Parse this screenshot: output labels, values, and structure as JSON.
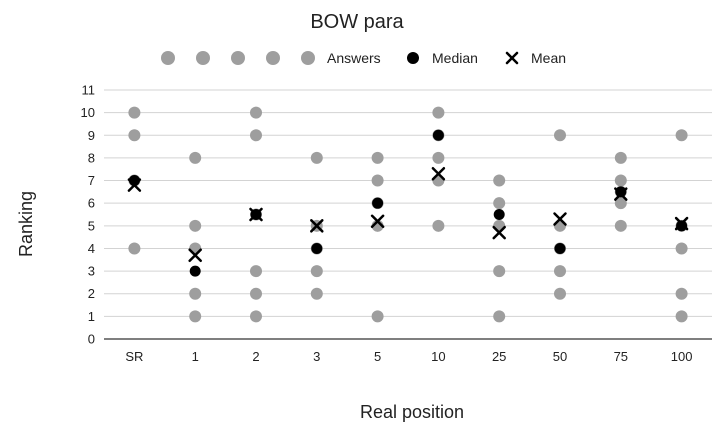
{
  "chart_data": {
    "type": "scatter",
    "title": "BOW para",
    "xlabel": "Real position",
    "ylabel": "Ranking",
    "categories": [
      "SR",
      "1",
      "2",
      "3",
      "5",
      "10",
      "25",
      "50",
      "75",
      "100"
    ],
    "yticks": [
      "0",
      "1",
      "2",
      "3",
      "4",
      "5",
      "6",
      "7",
      "8",
      "9",
      "10",
      "11"
    ],
    "ylim": [
      0,
      11
    ],
    "grid": true,
    "legend_position": "top",
    "legend": [
      "Answers",
      "Median",
      "Mean"
    ],
    "series": [
      {
        "name": "Answers",
        "marker": "circle",
        "color": "#9e9e9e",
        "points": [
          {
            "x": "SR",
            "y": 10
          },
          {
            "x": "SR",
            "y": 9
          },
          {
            "x": "SR",
            "y": 7
          },
          {
            "x": "SR",
            "y": 4
          },
          {
            "x": "1",
            "y": 8
          },
          {
            "x": "1",
            "y": 5
          },
          {
            "x": "1",
            "y": 4
          },
          {
            "x": "1",
            "y": 2
          },
          {
            "x": "1",
            "y": 1
          },
          {
            "x": "2",
            "y": 10
          },
          {
            "x": "2",
            "y": 9
          },
          {
            "x": "2",
            "y": 5.5
          },
          {
            "x": "2",
            "y": 3
          },
          {
            "x": "2",
            "y": 2
          },
          {
            "x": "2",
            "y": 1
          },
          {
            "x": "3",
            "y": 8
          },
          {
            "x": "3",
            "y": 5
          },
          {
            "x": "3",
            "y": 4
          },
          {
            "x": "3",
            "y": 3
          },
          {
            "x": "3",
            "y": 2
          },
          {
            "x": "5",
            "y": 8
          },
          {
            "x": "5",
            "y": 7
          },
          {
            "x": "5",
            "y": 6
          },
          {
            "x": "5",
            "y": 5
          },
          {
            "x": "5",
            "y": 1
          },
          {
            "x": "10",
            "y": 10
          },
          {
            "x": "10",
            "y": 9
          },
          {
            "x": "10",
            "y": 8
          },
          {
            "x": "10",
            "y": 7
          },
          {
            "x": "10",
            "y": 5
          },
          {
            "x": "25",
            "y": 7
          },
          {
            "x": "25",
            "y": 6
          },
          {
            "x": "25",
            "y": 5
          },
          {
            "x": "25",
            "y": 3
          },
          {
            "x": "25",
            "y": 1
          },
          {
            "x": "50",
            "y": 9
          },
          {
            "x": "50",
            "y": 5
          },
          {
            "x": "50",
            "y": 4
          },
          {
            "x": "50",
            "y": 3
          },
          {
            "x": "50",
            "y": 2
          },
          {
            "x": "75",
            "y": 8
          },
          {
            "x": "75",
            "y": 7
          },
          {
            "x": "75",
            "y": 6.5
          },
          {
            "x": "75",
            "y": 6
          },
          {
            "x": "75",
            "y": 5
          },
          {
            "x": "100",
            "y": 9
          },
          {
            "x": "100",
            "y": 5
          },
          {
            "x": "100",
            "y": 4
          },
          {
            "x": "100",
            "y": 2
          },
          {
            "x": "100",
            "y": 1
          }
        ]
      },
      {
        "name": "Median",
        "marker": "circle",
        "color": "#000000",
        "values": [
          7,
          3,
          5.5,
          4,
          6,
          9,
          5.5,
          4,
          6.5,
          5
        ]
      },
      {
        "name": "Mean",
        "marker": "x",
        "color": "#000000",
        "values": [
          6.8,
          3.7,
          5.5,
          5,
          5.2,
          7.3,
          4.7,
          5.3,
          6.4,
          5.1
        ]
      }
    ],
    "colors": {
      "answers": "#9e9e9e",
      "median": "#000000",
      "mean": "#000000",
      "grid": "#d3d3d3",
      "axis": "#333333"
    }
  }
}
